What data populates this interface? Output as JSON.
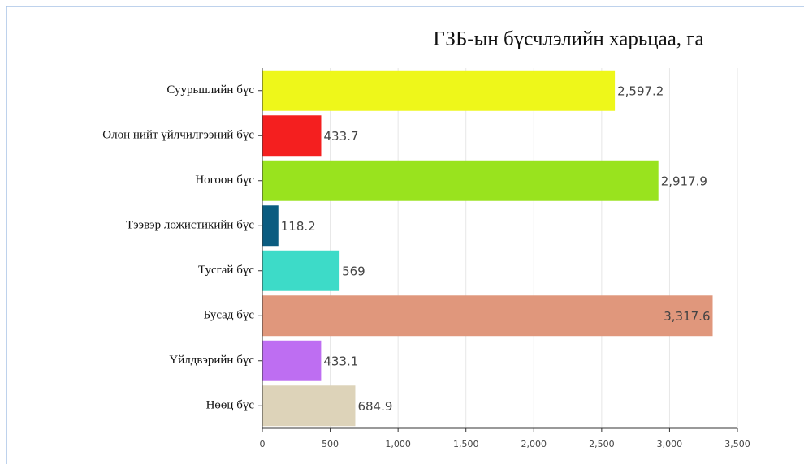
{
  "chart_data": {
    "type": "barh",
    "title": "ГЗБ-ын бүсчлэлийн харьцаа, га",
    "categories": [
      "Суурьшлийн бүс",
      "Олон нийт үйлчилгээний бүс",
      "Ногоон бүс",
      "Тээвэр ложистикийн бүс",
      "Тусгай бүс",
      "Бусад бүс",
      "Үйлдвэрийн бүс",
      "Нөөц бүс"
    ],
    "values": [
      2597.2,
      433.7,
      2917.9,
      118.2,
      569,
      3317.6,
      433.1,
      684.9
    ],
    "value_labels": [
      "2,597.2",
      "433.7",
      "2,917.9",
      "118.2",
      "569",
      "3,317.6",
      "433.1",
      "684.9"
    ],
    "colors": [
      "#eef71a",
      "#f41f1f",
      "#99e31e",
      "#0b5c80",
      "#3ddbc8",
      "#e0977c",
      "#be6ef2",
      "#ddd3b9"
    ],
    "xlim": [
      0,
      3500
    ],
    "xticks": [
      0,
      500,
      {
        "value": 1000,
        "label": "1,000"
      },
      {
        "value": 1500,
        "label": "1,500"
      },
      {
        "value": 2000,
        "label": "2,000"
      },
      {
        "value": 2500,
        "label": "2,500"
      },
      {
        "value": 3000,
        "label": "3,000"
      },
      {
        "value": 3500,
        "label": "3,500"
      }
    ],
    "grid": true
  }
}
